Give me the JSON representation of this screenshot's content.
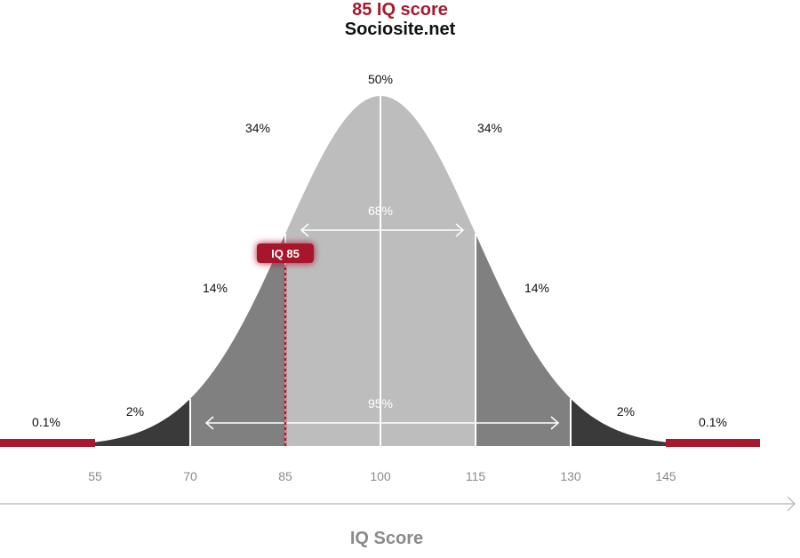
{
  "header": {
    "title": "85 IQ score",
    "subtitle": "Sociosite.net"
  },
  "colors": {
    "accent": "#a8192e",
    "band_center": "#bdbdbd",
    "band_mid": "#808080",
    "band_outer": "#3a3a3a",
    "tail": "#a8192e",
    "tick_text": "#8a8a8a"
  },
  "chart_data": {
    "type": "area",
    "distribution": "normal",
    "mean": 100,
    "sd": 15,
    "xlabel": "IQ Score",
    "xticks": [
      55,
      70,
      85,
      100,
      115,
      130,
      145
    ],
    "xlim": [
      40,
      160
    ],
    "bands": [
      {
        "from": 40,
        "to": 55,
        "percent_label": "0.1%",
        "shade": "tail"
      },
      {
        "from": 55,
        "to": 70,
        "percent_label": "2%",
        "shade": "outer"
      },
      {
        "from": 70,
        "to": 85,
        "percent_label": "14%",
        "shade": "mid"
      },
      {
        "from": 85,
        "to": 100,
        "percent_label": "34%",
        "shade": "center"
      },
      {
        "from": 100,
        "to": 115,
        "percent_label": "34%",
        "shade": "center"
      },
      {
        "from": 115,
        "to": 130,
        "percent_label": "14%",
        "shade": "mid"
      },
      {
        "from": 130,
        "to": 145,
        "percent_label": "2%",
        "shade": "outer"
      },
      {
        "from": 145,
        "to": 160,
        "percent_label": "0.1%",
        "shade": "tail"
      }
    ],
    "peak_label": "50%",
    "ranges": [
      {
        "from": 85,
        "to": 115,
        "label": "68%"
      },
      {
        "from": 70,
        "to": 130,
        "label": "95%"
      }
    ],
    "marker": {
      "x": 85,
      "label": "IQ 85"
    }
  }
}
